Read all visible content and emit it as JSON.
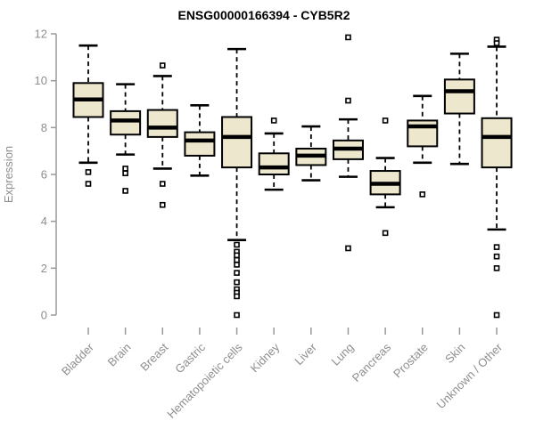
{
  "title": "ENSG00000166394 - CYB5R2",
  "chart_data": {
    "type": "boxplot",
    "title": "ENSG00000166394 - CYB5R2",
    "xlabel": "",
    "ylabel": "Expression",
    "ylim": [
      0,
      12
    ],
    "yticks": [
      0,
      2,
      4,
      6,
      8,
      10,
      12
    ],
    "grid": false,
    "legend": false,
    "categories": [
      "Bladder",
      "Brain",
      "Breast",
      "Gastric",
      "Hematopoietic cells",
      "Kidney",
      "Liver",
      "Lung",
      "Pancreas",
      "Prostate",
      "Skin",
      "Unknown / Other"
    ],
    "series": [
      {
        "name": "Bladder",
        "whisker_low": 6.5,
        "q1": 8.45,
        "median": 9.2,
        "q3": 9.9,
        "whisker_high": 11.5,
        "outliers": [
          6.1,
          5.6
        ]
      },
      {
        "name": "Brain",
        "whisker_low": 6.85,
        "q1": 7.7,
        "median": 8.3,
        "q3": 8.7,
        "whisker_high": 9.85,
        "outliers": [
          6.25,
          6.05,
          5.3
        ]
      },
      {
        "name": "Breast",
        "whisker_low": 6.25,
        "q1": 7.6,
        "median": 8.0,
        "q3": 8.75,
        "whisker_high": 10.2,
        "outliers": [
          10.65,
          5.6,
          4.7
        ]
      },
      {
        "name": "Gastric",
        "whisker_low": 5.95,
        "q1": 6.8,
        "median": 7.45,
        "q3": 7.8,
        "whisker_high": 8.95,
        "outliers": []
      },
      {
        "name": "Hematopoietic cells",
        "whisker_low": 3.2,
        "q1": 6.3,
        "median": 7.6,
        "q3": 8.45,
        "whisker_high": 11.35,
        "outliers": [
          3.0,
          2.7,
          2.55,
          2.35,
          2.15,
          1.8,
          1.4,
          1.1,
          0.95,
          0.8,
          0.0
        ]
      },
      {
        "name": "Kidney",
        "whisker_low": 5.35,
        "q1": 6.0,
        "median": 6.3,
        "q3": 6.9,
        "whisker_high": 7.75,
        "outliers": [
          8.3
        ]
      },
      {
        "name": "Liver",
        "whisker_low": 5.75,
        "q1": 6.4,
        "median": 6.8,
        "q3": 7.1,
        "whisker_high": 8.05,
        "outliers": []
      },
      {
        "name": "Lung",
        "whisker_low": 5.9,
        "q1": 6.65,
        "median": 7.1,
        "q3": 7.45,
        "whisker_high": 8.35,
        "outliers": [
          11.85,
          9.15,
          2.85
        ]
      },
      {
        "name": "Pancreas",
        "whisker_low": 4.6,
        "q1": 5.15,
        "median": 5.6,
        "q3": 6.15,
        "whisker_high": 6.7,
        "outliers": [
          8.3,
          3.5
        ]
      },
      {
        "name": "Prostate",
        "whisker_low": 6.5,
        "q1": 7.2,
        "median": 8.05,
        "q3": 8.3,
        "whisker_high": 9.35,
        "outliers": [
          5.15
        ]
      },
      {
        "name": "Skin",
        "whisker_low": 6.45,
        "q1": 8.6,
        "median": 9.55,
        "q3": 10.05,
        "whisker_high": 11.15,
        "outliers": []
      },
      {
        "name": "Unknown / Other",
        "whisker_low": 3.65,
        "q1": 6.3,
        "median": 7.6,
        "q3": 8.4,
        "whisker_high": 11.45,
        "outliers": [
          11.75,
          11.6,
          2.9,
          2.5,
          2.0,
          0.0
        ]
      }
    ],
    "colors": {
      "box_fill": "#ede8cd",
      "box_stroke": "#000000",
      "median": "#000000",
      "whisker": "#000000",
      "outlier_stroke": "#000000",
      "outlier_fill": "#ffffff",
      "axis": "#999999",
      "tick_text": "#8e8e8e",
      "title_text": "#000000",
      "background": "#ffffff"
    }
  }
}
